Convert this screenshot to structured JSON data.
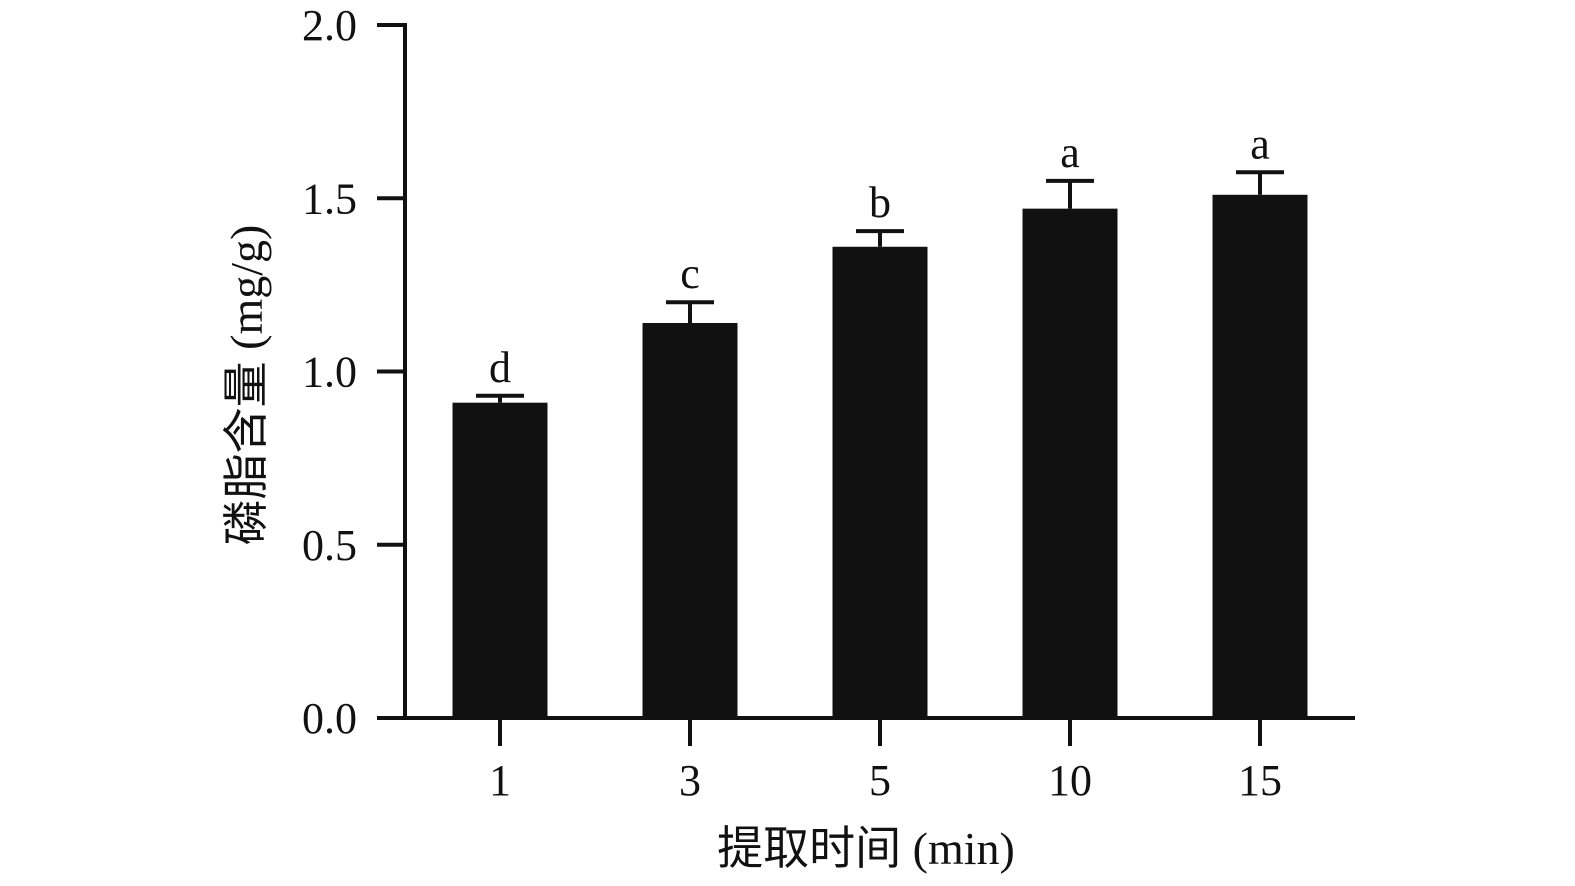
{
  "chart_data": {
    "type": "bar",
    "categories": [
      "1",
      "3",
      "5",
      "10",
      "15"
    ],
    "values": [
      0.91,
      1.14,
      1.36,
      1.47,
      1.51
    ],
    "errors": [
      0.02,
      0.06,
      0.045,
      0.08,
      0.065
    ],
    "significance": [
      "d",
      "c",
      "b",
      "a",
      "a"
    ],
    "xlabel": "提取时间 (min)",
    "ylabel": "磷脂含量 (mg/g)",
    "ylim": [
      0,
      2.0
    ],
    "yticks": [
      "0.0",
      "0.5",
      "1.0",
      "1.5",
      "2.0"
    ],
    "grid": false,
    "bar_color": "#111111"
  }
}
